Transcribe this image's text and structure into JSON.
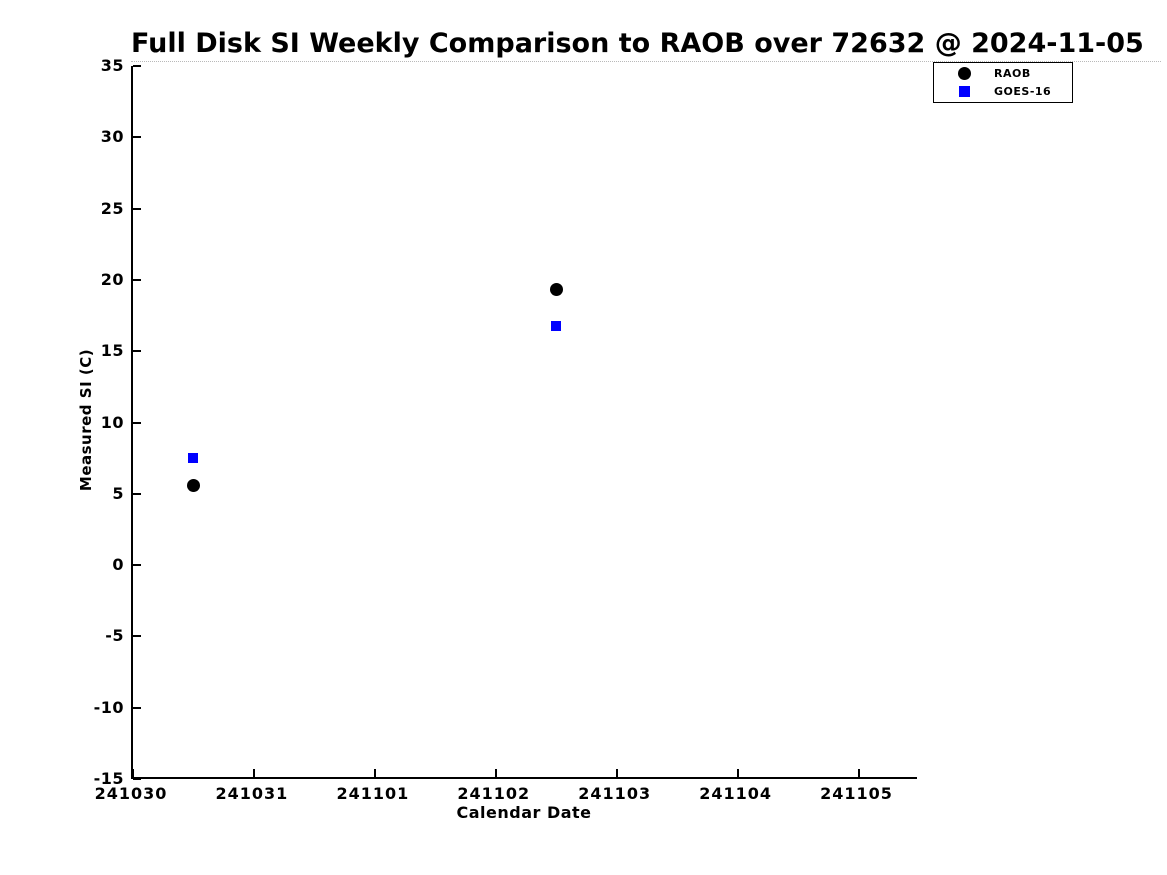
{
  "page": {
    "background": "#ffffff",
    "text_color": "#000000"
  },
  "chart_data": {
    "type": "scatter",
    "title": "Full Disk SI Weekly Comparison to RAOB over 72632 @ 2024-11-05",
    "xlabel": "Calendar Date",
    "ylabel": "Measured SI (C)",
    "grid": false,
    "x_ticks": [
      {
        "label": "241030",
        "day": 0
      },
      {
        "label": "241031",
        "day": 1
      },
      {
        "label": "241101",
        "day": 2
      },
      {
        "label": "241102",
        "day": 3
      },
      {
        "label": "241103",
        "day": 4
      },
      {
        "label": "241104",
        "day": 5
      },
      {
        "label": "241105",
        "day": 6
      }
    ],
    "xlim_days": [
      0,
      6.5
    ],
    "y_ticks": [
      35,
      30,
      25,
      20,
      15,
      10,
      5,
      0,
      -5,
      -10,
      -15
    ],
    "ylim": [
      -15,
      35
    ],
    "legend": {
      "position": "top-right",
      "entries": [
        {
          "label": "RAOB",
          "marker": "circle",
          "color": "#000000"
        },
        {
          "label": "GOES-16",
          "marker": "square",
          "color": "#0000ff"
        }
      ]
    },
    "series": [
      {
        "name": "RAOB",
        "marker": "circle",
        "color": "#000000",
        "marker_size_px": 13,
        "points": [
          {
            "x_date": "241030.5",
            "x_day": 0.5,
            "y": 5.6
          },
          {
            "x_date": "241102.5",
            "x_day": 3.5,
            "y": 19.3
          }
        ]
      },
      {
        "name": "GOES-16",
        "marker": "square",
        "color": "#0000ff",
        "marker_size_px": 10,
        "points": [
          {
            "x_date": "241030.5",
            "x_day": 0.5,
            "y": 7.5
          },
          {
            "x_date": "241102.5",
            "x_day": 3.5,
            "y": 16.8
          }
        ]
      }
    ]
  }
}
